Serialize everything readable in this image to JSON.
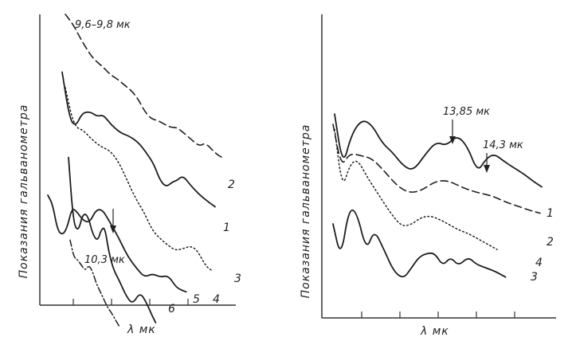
{
  "chart_data": [
    {
      "type": "line",
      "xlabel": "λ мк",
      "ylabel": "Показания гальванометра",
      "grid": false,
      "annotations": [
        "9,6–9,8 мк",
        "10,3 мк"
      ],
      "series": [
        {
          "name": "2",
          "style": "dashed",
          "points": [
            [
              0.0,
              0.0
            ],
            [
              0.05,
              0.06
            ],
            [
              0.1,
              0.15
            ],
            [
              0.16,
              0.24
            ],
            [
              0.2,
              0.28
            ],
            [
              0.24,
              0.31
            ],
            [
              0.28,
              0.35
            ],
            [
              0.33,
              0.38
            ],
            [
              0.38,
              0.42
            ],
            [
              0.42,
              0.45
            ],
            [
              0.46,
              0.5
            ],
            [
              0.5,
              0.57
            ],
            [
              0.54,
              0.61
            ],
            [
              0.58,
              0.62
            ],
            [
              0.62,
              0.64
            ],
            [
              0.66,
              0.66
            ],
            [
              0.7,
              0.66
            ],
            [
              0.74,
              0.69
            ],
            [
              0.79,
              0.73
            ],
            [
              0.84,
              0.77
            ],
            [
              0.88,
              0.75
            ],
            [
              0.93,
              0.8
            ],
            [
              0.97,
              0.83
            ],
            [
              1.0,
              0.84
            ]
          ]
        },
        {
          "name": "1",
          "style": "solid",
          "points": [
            [
              0.0,
              0.09
            ],
            [
              0.05,
              0.38
            ],
            [
              0.09,
              0.42
            ],
            [
              0.13,
              0.34
            ],
            [
              0.18,
              0.33
            ],
            [
              0.23,
              0.36
            ],
            [
              0.27,
              0.35
            ],
            [
              0.32,
              0.41
            ],
            [
              0.38,
              0.46
            ],
            [
              0.44,
              0.48
            ],
            [
              0.5,
              0.52
            ],
            [
              0.55,
              0.58
            ],
            [
              0.6,
              0.65
            ],
            [
              0.64,
              0.75
            ],
            [
              0.68,
              0.79
            ],
            [
              0.72,
              0.76
            ],
            [
              0.75,
              0.75
            ],
            [
              0.79,
              0.72
            ],
            [
              0.84,
              0.78
            ],
            [
              0.89,
              0.83
            ],
            [
              0.94,
              0.87
            ],
            [
              1.0,
              0.91
            ]
          ]
        },
        {
          "name": "3",
          "style": "dotted",
          "points": [
            [
              0.0,
              0.19
            ],
            [
              0.05,
              0.36
            ],
            [
              0.11,
              0.38
            ],
            [
              0.16,
              0.42
            ],
            [
              0.21,
              0.45
            ],
            [
              0.27,
              0.47
            ],
            [
              0.32,
              0.52
            ],
            [
              0.37,
              0.6
            ],
            [
              0.42,
              0.68
            ],
            [
              0.47,
              0.74
            ],
            [
              0.52,
              0.82
            ],
            [
              0.57,
              0.86
            ],
            [
              0.62,
              0.89
            ],
            [
              0.66,
              0.91
            ],
            [
              0.71,
              0.9
            ],
            [
              0.75,
              0.89
            ],
            [
              0.79,
              0.91
            ],
            [
              0.84,
              0.98
            ],
            [
              0.88,
              1.0
            ]
          ]
        },
        {
          "name": "4",
          "style": "solid",
          "points": [
            [
              0.0,
              0.48
            ],
            [
              0.03,
              0.53
            ],
            [
              0.06,
              0.67
            ],
            [
              0.09,
              0.7
            ],
            [
              0.12,
              0.66
            ],
            [
              0.15,
              0.55
            ],
            [
              0.18,
              0.57
            ],
            [
              0.22,
              0.62
            ],
            [
              0.26,
              0.63
            ],
            [
              0.3,
              0.56
            ],
            [
              0.34,
              0.56
            ],
            [
              0.38,
              0.62
            ],
            [
              0.42,
              0.68
            ],
            [
              0.46,
              0.75
            ],
            [
              0.5,
              0.82
            ],
            [
              0.55,
              0.88
            ],
            [
              0.6,
              0.93
            ],
            [
              0.65,
              0.91
            ],
            [
              0.7,
              0.93
            ],
            [
              0.75,
              0.92
            ],
            [
              0.8,
              0.99
            ],
            [
              0.86,
              1.01
            ]
          ]
        },
        {
          "name": "5",
          "style": "solid",
          "points": [
            [
              0.0,
              0.42
            ],
            [
              0.04,
              0.7
            ],
            [
              0.08,
              0.74
            ],
            [
              0.12,
              0.66
            ],
            [
              0.16,
              0.67
            ],
            [
              0.2,
              0.75
            ],
            [
              0.24,
              0.78
            ],
            [
              0.27,
              0.73
            ],
            [
              0.3,
              0.72
            ],
            [
              0.33,
              0.82
            ],
            [
              0.37,
              0.9
            ],
            [
              0.42,
              0.95
            ],
            [
              0.48,
              1.02
            ],
            [
              0.53,
              1.05
            ],
            [
              0.59,
              1.0
            ],
            [
              0.64,
              1.04
            ],
            [
              0.69,
              1.1
            ],
            [
              0.72,
              1.13
            ]
          ]
        },
        {
          "name": "6",
          "style": "dash-dot",
          "points": [
            [
              0.0,
              0.55
            ],
            [
              0.04,
              0.68
            ],
            [
              0.08,
              0.7
            ],
            [
              0.12,
              0.74
            ],
            [
              0.16,
              0.78
            ],
            [
              0.2,
              0.74
            ],
            [
              0.24,
              0.79
            ],
            [
              0.28,
              0.88
            ],
            [
              0.32,
              0.94
            ],
            [
              0.36,
              1.0
            ],
            [
              0.4,
              1.06
            ],
            [
              0.44,
              1.1
            ],
            [
              0.48,
              1.15
            ],
            [
              0.52,
              1.2
            ]
          ]
        }
      ]
    },
    {
      "type": "line",
      "xlabel": "λ мк",
      "ylabel": "Показания гальванометра",
      "grid": false,
      "annotations": [
        "13,85 мк",
        "14,3 мк"
      ],
      "series": [
        {
          "name": "1",
          "style": "solid",
          "points": [
            [
              0.0,
              0.26
            ],
            [
              0.04,
              0.66
            ],
            [
              0.08,
              0.42
            ],
            [
              0.13,
              0.3
            ],
            [
              0.18,
              0.34
            ],
            [
              0.23,
              0.48
            ],
            [
              0.28,
              0.55
            ],
            [
              0.33,
              0.65
            ],
            [
              0.38,
              0.69
            ],
            [
              0.44,
              0.56
            ],
            [
              0.49,
              0.47
            ],
            [
              0.54,
              0.5
            ],
            [
              0.59,
              0.42
            ],
            [
              0.64,
              0.5
            ],
            [
              0.69,
              0.7
            ],
            [
              0.73,
              0.6
            ],
            [
              0.77,
              0.56
            ],
            [
              0.82,
              0.62
            ],
            [
              0.87,
              0.67
            ],
            [
              0.92,
              0.72
            ],
            [
              0.96,
              0.77
            ],
            [
              1.0,
              0.81
            ]
          ]
        },
        {
          "name": "2",
          "style": "dashed",
          "points": [
            [
              0.0,
              0.3
            ],
            [
              0.04,
              0.6
            ],
            [
              0.08,
              0.5
            ],
            [
              0.14,
              0.52
            ],
            [
              0.19,
              0.54
            ],
            [
              0.25,
              0.63
            ],
            [
              0.31,
              0.73
            ],
            [
              0.37,
              0.78
            ],
            [
              0.43,
              0.76
            ],
            [
              0.49,
              0.7
            ],
            [
              0.55,
              0.69
            ],
            [
              0.61,
              0.73
            ],
            [
              0.66,
              0.76
            ],
            [
              0.71,
              0.78
            ],
            [
              0.77,
              0.8
            ],
            [
              0.83,
              0.84
            ],
            [
              0.89,
              0.87
            ],
            [
              0.95,
              0.9
            ],
            [
              1.0,
              0.92
            ]
          ]
        },
        {
          "name": "4",
          "style": "dotted",
          "points": [
            [
              0.0,
              0.28
            ],
            [
              0.04,
              0.62
            ],
            [
              0.08,
              0.48
            ],
            [
              0.12,
              0.45
            ],
            [
              0.17,
              0.55
            ],
            [
              0.23,
              0.65
            ],
            [
              0.29,
              0.75
            ],
            [
              0.35,
              0.83
            ],
            [
              0.4,
              0.82
            ],
            [
              0.45,
              0.78
            ],
            [
              0.5,
              0.77
            ],
            [
              0.55,
              0.79
            ],
            [
              0.6,
              0.82
            ],
            [
              0.65,
              0.85
            ],
            [
              0.7,
              0.87
            ],
            [
              0.75,
              0.9
            ],
            [
              0.8,
              0.93
            ],
            [
              0.85,
              0.96
            ]
          ]
        },
        {
          "name": "3",
          "style": "solid",
          "points": [
            [
              0.0,
              0.7
            ],
            [
              0.04,
              0.89
            ],
            [
              0.08,
              0.62
            ],
            [
              0.12,
              0.63
            ],
            [
              0.17,
              0.85
            ],
            [
              0.21,
              0.73
            ],
            [
              0.26,
              0.84
            ],
            [
              0.31,
              0.96
            ],
            [
              0.36,
              1.0
            ],
            [
              0.4,
              0.94
            ],
            [
              0.44,
              0.88
            ],
            [
              0.48,
              0.86
            ],
            [
              0.52,
              0.86
            ],
            [
              0.56,
              0.93
            ],
            [
              0.6,
              0.88
            ],
            [
              0.64,
              0.93
            ],
            [
              0.69,
              0.88
            ],
            [
              0.73,
              0.92
            ],
            [
              0.78,
              0.94
            ],
            [
              0.83,
              0.96
            ],
            [
              0.88,
              0.99
            ]
          ]
        }
      ]
    }
  ]
}
